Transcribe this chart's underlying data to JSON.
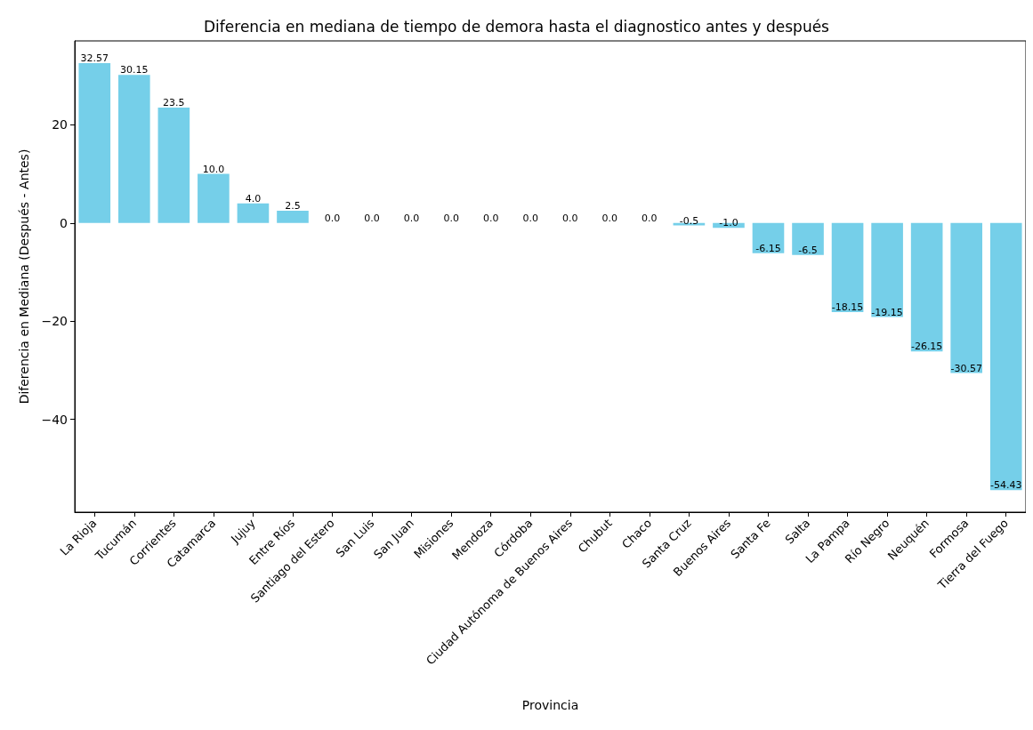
{
  "chart_data": {
    "type": "bar",
    "title": "Diferencia en mediana de tiempo de demora hasta el diagnostico antes y después",
    "xlabel": "Provincia",
    "ylabel": "Diferencia en Mediana (Después - Antes)",
    "categories": [
      "La Rioja",
      "Tucumán",
      "Corrientes",
      "Catamarca",
      "Jujuy",
      "Entre Ríos",
      "Santiago del Estero",
      "San Luis",
      "San Juan",
      "Misiones",
      "Mendoza",
      "Córdoba",
      "Ciudad Autónoma de Buenos Aires",
      "Chubut",
      "Chaco",
      "Santa Cruz",
      "Buenos Aires",
      "Santa Fe",
      "Salta",
      "La Pampa",
      "Río Negro",
      "Neuquén",
      "Formosa",
      "Tierra del Fuego"
    ],
    "values": [
      32.57,
      30.15,
      23.5,
      10,
      4,
      2.5,
      0,
      0,
      0,
      0,
      0,
      0,
      0,
      0,
      0,
      -0.5,
      -1,
      -6.15,
      -6.5,
      -18.15,
      -19.15,
      -26.15,
      -30.57,
      -54.43
    ],
    "value_labels": [
      "32.57",
      "30.15",
      "23.5",
      "10.0",
      "4.0",
      "2.5",
      "0.0",
      "0.0",
      "0.0",
      "0.0",
      "0.0",
      "0.0",
      "0.0",
      "0.0",
      "0.0",
      "-0.5",
      "-1.0",
      "-6.15",
      "-6.5",
      "-18.15",
      "-19.15",
      "-26.15",
      "-30.57",
      "-54.43"
    ],
    "color": "#75cfe9",
    "ylim": [
      -58.9,
      37.1
    ],
    "yticks": [
      -40,
      -20,
      0,
      20
    ],
    "grid": false
  }
}
